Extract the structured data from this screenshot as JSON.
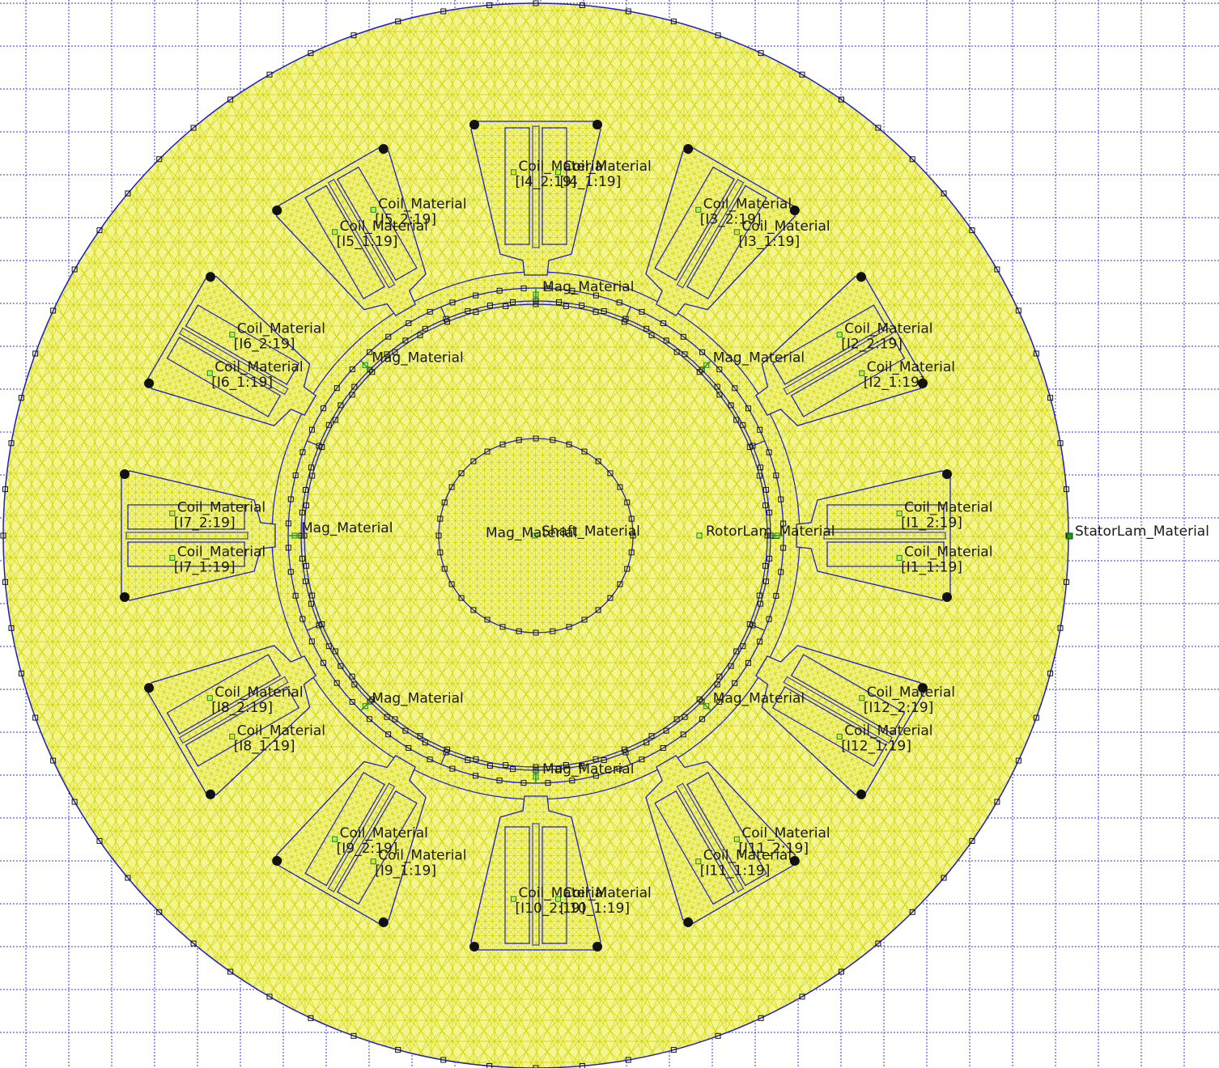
{
  "colors": {
    "background": "#ffffff",
    "grid": "#3a3ad0",
    "mesh_fill": "#f3f58e",
    "mesh_lines": "#d2d400",
    "boundary": "#1e1ec8",
    "node_outline": "#111111",
    "label_marker": "#1d9a1d",
    "magnet_arrow": "#1d9a1d"
  },
  "model": {
    "stator_material": "StatorLam_Material",
    "rotor_material": "RotorLam_Material",
    "shaft_material": "Shaft_Material",
    "magnet_material": "Mag_Material",
    "coil_material": "Coil_Material"
  },
  "magnets": [
    {
      "label": "Mag_Material",
      "angle_deg": 90
    },
    {
      "label": "Mag_Material",
      "angle_deg": 45
    },
    {
      "label": "Mag_Material",
      "angle_deg": 135
    },
    {
      "label": "Mag_Material",
      "angle_deg": 0
    },
    {
      "label": "Mag_Material",
      "angle_deg": 180
    },
    {
      "label": "Mag_Material",
      "angle_deg": 225
    },
    {
      "label": "Mag_Material",
      "angle_deg": 315
    },
    {
      "label": "Mag_Material",
      "angle_deg": 270
    }
  ],
  "coils": [
    {
      "slot": 1,
      "label_a": "Coil_Material",
      "circuit_a": "[I1_2:19]",
      "label_b": "Coil_Material",
      "circuit_b": "[I1_1:19]"
    },
    {
      "slot": 2,
      "label_a": "Coil_Material",
      "circuit_a": "[I2_2:19]",
      "label_b": "Coil_Material",
      "circuit_b": "[I2_1:19]"
    },
    {
      "slot": 3,
      "label_a": "Coil_Material",
      "circuit_a": "[I3_2:19]",
      "label_b": "Coil_Material",
      "circuit_b": "[I3_1:19]"
    },
    {
      "slot": 4,
      "label_a": "Coil_Material",
      "circuit_a": "[I4_2:19]",
      "label_b": "Coil_Material",
      "circuit_b": "[I4_1:19]"
    },
    {
      "slot": 5,
      "label_a": "Coil_Material",
      "circuit_a": "[I5_1:19]",
      "label_b": "Coil_Material",
      "circuit_b": "[I5_2:19]"
    },
    {
      "slot": 6,
      "label_a": "Coil_Material",
      "circuit_a": "[I6_1:19]",
      "label_b": "Coil_Material",
      "circuit_b": "[I6_2:19]"
    },
    {
      "slot": 7,
      "label_a": "Coil_Material",
      "circuit_a": "[I7_1:19]",
      "label_b": "Coil_Material",
      "circuit_b": "[I7_2:19]"
    },
    {
      "slot": 8,
      "label_a": "Coil_Material",
      "circuit_a": "[I8_1:19]",
      "label_b": "Coil_Material",
      "circuit_b": "[I8_2:19]"
    },
    {
      "slot": 9,
      "label_a": "Coil_Material",
      "circuit_a": "[I9_1:19]",
      "label_b": "Coil_Material",
      "circuit_b": "[I9_2:19]"
    },
    {
      "slot": 10,
      "label_a": "Coil_Material",
      "circuit_a": "[I10_1:19]",
      "label_b": "Coil_Material",
      "circuit_b": "[I10_2:19]"
    },
    {
      "slot": 11,
      "label_a": "Coil_Material",
      "circuit_a": "[I11_2:19]",
      "label_b": "Coil_Material",
      "circuit_b": "[I11_1:19]"
    },
    {
      "slot": 12,
      "label_a": "Coil_Material",
      "circuit_a": "[I12_2:19]",
      "label_b": "Coil_Material",
      "circuit_b": "[I12_1:19]"
    }
  ]
}
